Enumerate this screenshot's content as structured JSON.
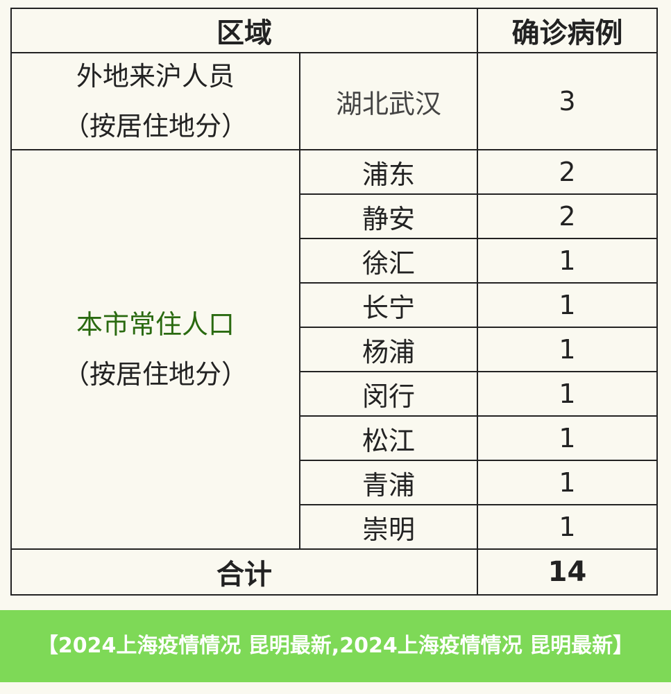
{
  "header": {
    "region": "区域",
    "cases": "确诊病例"
  },
  "outside": {
    "label_line1": "外地来沪人员",
    "label_line2": "（按居住地分）",
    "region": "湖北武汉",
    "cases": "3"
  },
  "local": {
    "label_line1": "本市常住人口",
    "label_line2": "（按居住地分）",
    "rows": [
      {
        "region": "浦东",
        "cases": "2"
      },
      {
        "region": "静安",
        "cases": "2"
      },
      {
        "region": "徐汇",
        "cases": "1"
      },
      {
        "region": "长宁",
        "cases": "1"
      },
      {
        "region": "杨浦",
        "cases": "1"
      },
      {
        "region": "闵行",
        "cases": "1"
      },
      {
        "region": "松江",
        "cases": "1"
      },
      {
        "region": "青浦",
        "cases": "1"
      },
      {
        "region": "崇明",
        "cases": "1"
      }
    ]
  },
  "total": {
    "label": "合计",
    "cases": "14"
  },
  "banner": {
    "text": "【2024上海疫情情况 昆明最新,2024上海疫情情况 昆明最新】",
    "color": "#7ed957"
  }
}
